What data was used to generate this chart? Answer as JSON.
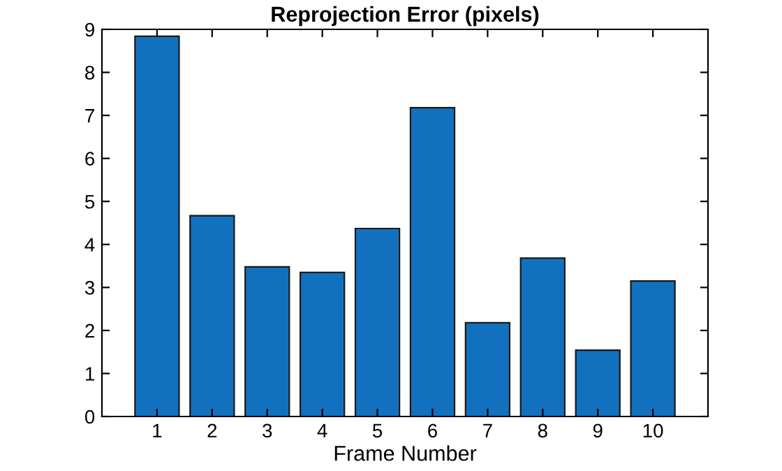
{
  "chart_data": {
    "type": "bar",
    "title": "Reprojection Error (pixels)",
    "xlabel": "Frame Number",
    "x": [
      1,
      2,
      3,
      4,
      5,
      6,
      7,
      8,
      9,
      10
    ],
    "values": [
      8.84,
      4.67,
      3.48,
      3.35,
      4.37,
      7.18,
      2.18,
      3.68,
      1.54,
      3.15
    ],
    "color": "#1271bf",
    "xlim": [
      0,
      11
    ],
    "xticks": [
      1,
      2,
      3,
      4,
      5,
      6,
      7,
      8,
      9,
      10
    ],
    "ylim": [
      0,
      9
    ],
    "yticks": [
      0,
      1,
      2,
      3,
      4,
      5,
      6,
      7,
      8,
      9
    ],
    "grid": false,
    "legend": false
  }
}
